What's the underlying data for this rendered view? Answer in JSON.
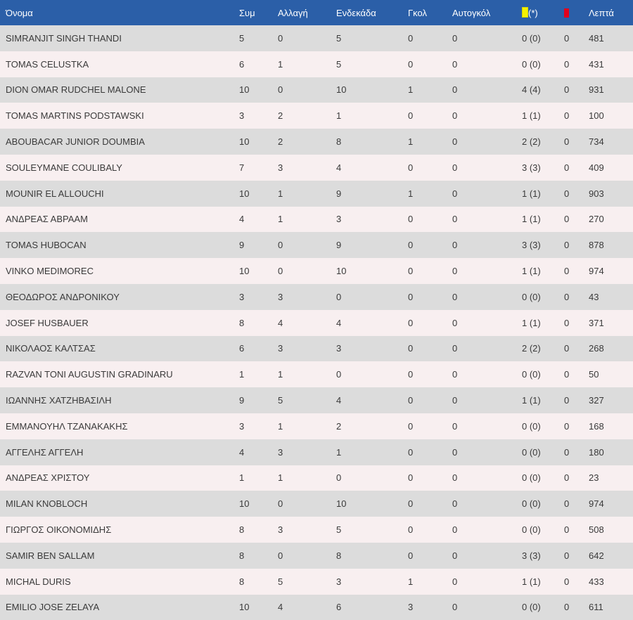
{
  "headers": {
    "name": "Όνομα",
    "apps": "Συμ",
    "subs": "Αλλαγή",
    "starts": "Ενδεκάδα",
    "goals": "Γκολ",
    "own_goals": "Αυτογκόλ",
    "yellow_suffix": "(*)",
    "minutes": "Λεπτά"
  },
  "icons": {
    "yellow_card": "yellow-card-icon",
    "red_card": "red-card-icon"
  },
  "colors": {
    "header_bg": "#2b5fa8",
    "row_odd": "#dcdcdc",
    "row_even": "#f8eff0",
    "yellow": "#f5f200",
    "red": "#e3001b"
  },
  "players": [
    {
      "name": "SIMRANJIT SINGH THANDI",
      "apps": "5",
      "subs": "0",
      "starts": "5",
      "goals": "0",
      "own_goals": "0",
      "yellow": "0 (0)",
      "red": "0",
      "minutes": "481"
    },
    {
      "name": "TOMAS CELUSTKA",
      "apps": "6",
      "subs": "1",
      "starts": "5",
      "goals": "0",
      "own_goals": "0",
      "yellow": "0 (0)",
      "red": "0",
      "minutes": "431"
    },
    {
      "name": "DION OMAR RUDCHEL MALONE",
      "apps": "10",
      "subs": "0",
      "starts": "10",
      "goals": "1",
      "own_goals": "0",
      "yellow": "4 (4)",
      "red": "0",
      "minutes": "931"
    },
    {
      "name": "TOMAS MARTINS PODSTAWSKI",
      "apps": "3",
      "subs": "2",
      "starts": "1",
      "goals": "0",
      "own_goals": "0",
      "yellow": "1 (1)",
      "red": "0",
      "minutes": "100"
    },
    {
      "name": "ABOUBACAR JUNIOR DOUMBIA",
      "apps": "10",
      "subs": "2",
      "starts": "8",
      "goals": "1",
      "own_goals": "0",
      "yellow": "2 (2)",
      "red": "0",
      "minutes": "734"
    },
    {
      "name": "SOULEYMANE COULIBALY",
      "apps": "7",
      "subs": "3",
      "starts": "4",
      "goals": "0",
      "own_goals": "0",
      "yellow": "3 (3)",
      "red": "0",
      "minutes": "409"
    },
    {
      "name": "MOUNIR EL ALLOUCHI",
      "apps": "10",
      "subs": "1",
      "starts": "9",
      "goals": "1",
      "own_goals": "0",
      "yellow": "1 (1)",
      "red": "0",
      "minutes": "903"
    },
    {
      "name": "ΑΝΔΡΕΑΣ ΑΒΡΑΑΜ",
      "apps": "4",
      "subs": "1",
      "starts": "3",
      "goals": "0",
      "own_goals": "0",
      "yellow": "1 (1)",
      "red": "0",
      "minutes": "270"
    },
    {
      "name": "TOMAS HUBOCAN",
      "apps": "9",
      "subs": "0",
      "starts": "9",
      "goals": "0",
      "own_goals": "0",
      "yellow": "3 (3)",
      "red": "0",
      "minutes": "878"
    },
    {
      "name": "VINKO MEDIMOREC",
      "apps": "10",
      "subs": "0",
      "starts": "10",
      "goals": "0",
      "own_goals": "0",
      "yellow": "1 (1)",
      "red": "0",
      "minutes": "974"
    },
    {
      "name": "ΘΕΟΔΩΡΟΣ ΑΝΔΡΟΝΙΚΟΥ",
      "apps": "3",
      "subs": "3",
      "starts": "0",
      "goals": "0",
      "own_goals": "0",
      "yellow": "0 (0)",
      "red": "0",
      "minutes": "43"
    },
    {
      "name": "JOSEF HUSBAUER",
      "apps": "8",
      "subs": "4",
      "starts": "4",
      "goals": "0",
      "own_goals": "0",
      "yellow": "1 (1)",
      "red": "0",
      "minutes": "371"
    },
    {
      "name": "ΝΙΚΟΛΑΟΣ ΚΑΛΤΣΑΣ",
      "apps": "6",
      "subs": "3",
      "starts": "3",
      "goals": "0",
      "own_goals": "0",
      "yellow": "2 (2)",
      "red": "0",
      "minutes": "268"
    },
    {
      "name": "RAZVAN TONI AUGUSTIN GRADINARU",
      "apps": "1",
      "subs": "1",
      "starts": "0",
      "goals": "0",
      "own_goals": "0",
      "yellow": "0 (0)",
      "red": "0",
      "minutes": "50"
    },
    {
      "name": "ΙΩΑΝΝΗΣ ΧΑΤΖΗΒΑΣΙΛΗ",
      "apps": "9",
      "subs": "5",
      "starts": "4",
      "goals": "0",
      "own_goals": "0",
      "yellow": "1 (1)",
      "red": "0",
      "minutes": "327"
    },
    {
      "name": "ΕΜΜΑΝΟΥΗΛ ΤΖΑΝΑΚΑΚΗΣ",
      "apps": "3",
      "subs": "1",
      "starts": "2",
      "goals": "0",
      "own_goals": "0",
      "yellow": "0 (0)",
      "red": "0",
      "minutes": "168"
    },
    {
      "name": "ΑΓΓΕΛΗΣ ΑΓΓΕΛΗ",
      "apps": "4",
      "subs": "3",
      "starts": "1",
      "goals": "0",
      "own_goals": "0",
      "yellow": "0 (0)",
      "red": "0",
      "minutes": "180"
    },
    {
      "name": "ΑΝΔΡΕΑΣ ΧΡΙΣΤΟΥ",
      "apps": "1",
      "subs": "1",
      "starts": "0",
      "goals": "0",
      "own_goals": "0",
      "yellow": "0 (0)",
      "red": "0",
      "minutes": "23"
    },
    {
      "name": "MILAN KNOBLOCH",
      "apps": "10",
      "subs": "0",
      "starts": "10",
      "goals": "0",
      "own_goals": "0",
      "yellow": "0 (0)",
      "red": "0",
      "minutes": "974"
    },
    {
      "name": "ΓΙΩΡΓΟΣ ΟΙΚΟΝΟΜΙΔΗΣ",
      "apps": "8",
      "subs": "3",
      "starts": "5",
      "goals": "0",
      "own_goals": "0",
      "yellow": "0 (0)",
      "red": "0",
      "minutes": "508"
    },
    {
      "name": "SAMIR BEN SALLAM",
      "apps": "8",
      "subs": "0",
      "starts": "8",
      "goals": "0",
      "own_goals": "0",
      "yellow": "3 (3)",
      "red": "0",
      "minutes": "642"
    },
    {
      "name": "MICHAL DURIS",
      "apps": "8",
      "subs": "5",
      "starts": "3",
      "goals": "1",
      "own_goals": "0",
      "yellow": "1 (1)",
      "red": "0",
      "minutes": "433"
    },
    {
      "name": "EMILIO JOSE ZELAYA",
      "apps": "10",
      "subs": "4",
      "starts": "6",
      "goals": "3",
      "own_goals": "0",
      "yellow": "0 (0)",
      "red": "0",
      "minutes": "611"
    }
  ]
}
